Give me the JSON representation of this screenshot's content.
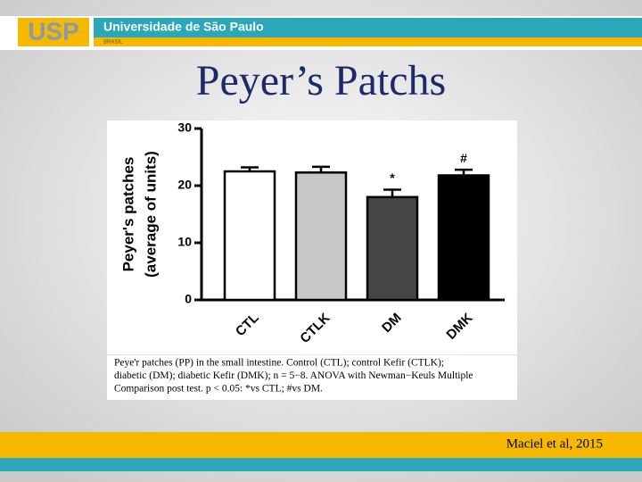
{
  "header": {
    "logo": "USP",
    "institution": "Universidade de São Paulo",
    "country": "BRASIL"
  },
  "title": "Peyer’s Patchs",
  "chart_data": {
    "type": "bar",
    "ylabel": [
      "Peyer's patches",
      "(average of units)"
    ],
    "categories": [
      "CTL",
      "CTLK",
      "DM",
      "DMK"
    ],
    "values": [
      22.5,
      22.3,
      18,
      21.8
    ],
    "errors": [
      0.7,
      1,
      1.3,
      1
    ],
    "colors": [
      "#ffffff",
      "#c8c8c8",
      "#454545",
      "#000000"
    ],
    "annotations": [
      "",
      "",
      "*",
      "#"
    ],
    "ylim": [
      0,
      30
    ],
    "yticks": [
      0,
      10,
      20,
      30
    ]
  },
  "caption": [
    "Peye'r patches (PP) in the small intestine. Control (CTL); control Kefir (CTLK);",
    "diabetic (DM); diabetic Kefir (DMK); n = 5−8. ANOVA with Newman−Keuls Multiple",
    "Comparison post test. p < 0.05: *vs CTL; #vs DM."
  ],
  "citation": "Maciel et al, 2015"
}
